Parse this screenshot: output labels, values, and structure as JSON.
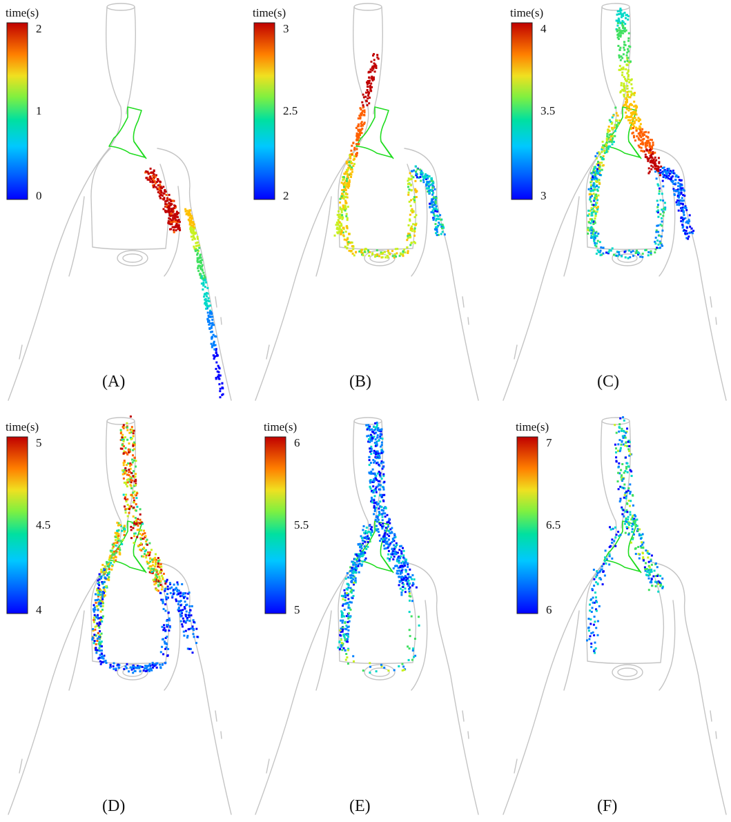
{
  "figure": {
    "panels": [
      {
        "label": "(A)",
        "colorbar": {
          "title": "time(s)",
          "ticks": [
            "2",
            "1",
            "0"
          ]
        },
        "tmin": 0,
        "tmax": 2
      },
      {
        "label": "(B)",
        "colorbar": {
          "title": "time(s)",
          "ticks": [
            "3",
            "2.5",
            "2"
          ]
        },
        "tmin": 2,
        "tmax": 3
      },
      {
        "label": "(C)",
        "colorbar": {
          "title": "time(s)",
          "ticks": [
            "4",
            "3.5",
            "3"
          ]
        },
        "tmin": 3,
        "tmax": 4
      },
      {
        "label": "(D)",
        "colorbar": {
          "title": "time(s)",
          "ticks": [
            "5",
            "4.5",
            "4"
          ]
        },
        "tmin": 4,
        "tmax": 5
      },
      {
        "label": "(E)",
        "colorbar": {
          "title": "time(s)",
          "ticks": [
            "6",
            "5.5",
            "5"
          ]
        },
        "tmin": 5,
        "tmax": 6
      },
      {
        "label": "(F)",
        "colorbar": {
          "title": "time(s)",
          "ticks": [
            "7",
            "6.5",
            "6"
          ]
        },
        "tmin": 6,
        "tmax": 7
      }
    ],
    "colormap": [
      "#0000ff",
      "#0080ff",
      "#00d8c8",
      "#40e060",
      "#c8f020",
      "#ffc000",
      "#ff6000",
      "#c00000"
    ],
    "vessel_color": "#c4c4c4",
    "valve_color": "#1fdc1f"
  }
}
